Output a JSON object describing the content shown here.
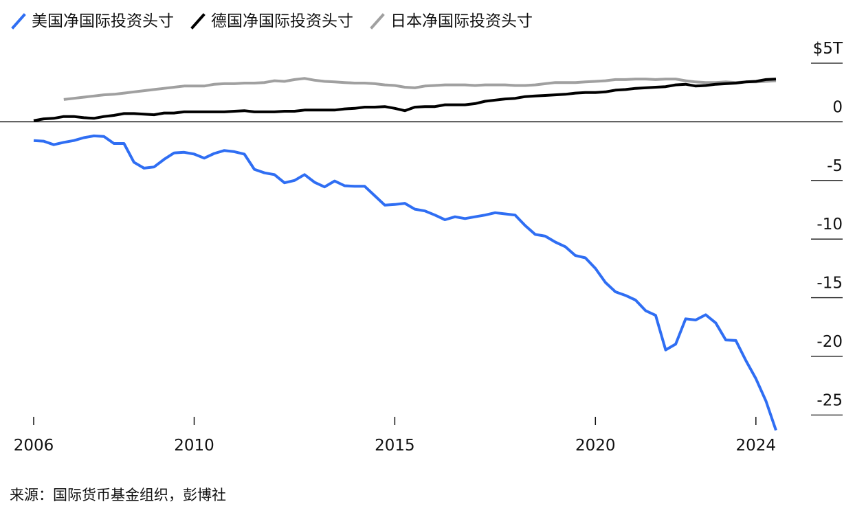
{
  "legend": [
    {
      "label": "美国净国际投资头寸",
      "color": "#2f6ef3"
    },
    {
      "label": "德国净国际投资头寸",
      "color": "#000000"
    },
    {
      "label": "日本净国际投资头寸",
      "color": "#a0a0a0"
    }
  ],
  "source": "来源：国际货币基金组织，彭博社",
  "chart_data": {
    "type": "line",
    "xlim": [
      2006,
      2024.5
    ],
    "ylim": [
      -26.5,
      5
    ],
    "x_ticks": [
      2006,
      2010,
      2015,
      2020,
      2024
    ],
    "x_tick_labels": [
      "2006",
      "2010",
      "2015",
      "2020",
      "2024"
    ],
    "y_ticks": [
      5,
      0,
      -5,
      -10,
      -15,
      -20,
      -25
    ],
    "y_tick_labels": [
      "$5T",
      "0",
      "-5",
      "-10",
      "-15",
      "-20",
      "-25"
    ],
    "series": [
      {
        "name": "美国净国际投资头寸",
        "color": "#2f6ef3",
        "points": [
          [
            2006.0,
            -1.6
          ],
          [
            2006.25,
            -1.65
          ],
          [
            2006.5,
            -1.95
          ],
          [
            2006.75,
            -1.75
          ],
          [
            2007.0,
            -1.6
          ],
          [
            2007.25,
            -1.35
          ],
          [
            2007.5,
            -1.2
          ],
          [
            2007.75,
            -1.25
          ],
          [
            2008.0,
            -1.85
          ],
          [
            2008.25,
            -1.85
          ],
          [
            2008.5,
            -3.45
          ],
          [
            2008.75,
            -3.95
          ],
          [
            2009.0,
            -3.85
          ],
          [
            2009.25,
            -3.2
          ],
          [
            2009.5,
            -2.65
          ],
          [
            2009.75,
            -2.6
          ],
          [
            2010.0,
            -2.75
          ],
          [
            2010.25,
            -3.1
          ],
          [
            2010.5,
            -2.7
          ],
          [
            2010.75,
            -2.45
          ],
          [
            2011.0,
            -2.55
          ],
          [
            2011.25,
            -2.75
          ],
          [
            2011.5,
            -4.05
          ],
          [
            2011.75,
            -4.35
          ],
          [
            2012.0,
            -4.5
          ],
          [
            2012.25,
            -5.2
          ],
          [
            2012.5,
            -5.0
          ],
          [
            2012.75,
            -4.5
          ],
          [
            2013.0,
            -5.15
          ],
          [
            2013.25,
            -5.55
          ],
          [
            2013.5,
            -5.05
          ],
          [
            2013.75,
            -5.45
          ],
          [
            2014.0,
            -5.5
          ],
          [
            2014.25,
            -5.5
          ],
          [
            2014.5,
            -6.3
          ],
          [
            2014.75,
            -7.1
          ],
          [
            2015.0,
            -7.05
          ],
          [
            2015.25,
            -6.95
          ],
          [
            2015.5,
            -7.45
          ],
          [
            2015.75,
            -7.6
          ],
          [
            2016.0,
            -7.95
          ],
          [
            2016.25,
            -8.35
          ],
          [
            2016.5,
            -8.1
          ],
          [
            2016.75,
            -8.25
          ],
          [
            2017.0,
            -8.1
          ],
          [
            2017.25,
            -7.95
          ],
          [
            2017.5,
            -7.75
          ],
          [
            2017.75,
            -7.85
          ],
          [
            2018.0,
            -7.95
          ],
          [
            2018.25,
            -8.85
          ],
          [
            2018.5,
            -9.6
          ],
          [
            2018.75,
            -9.75
          ],
          [
            2019.0,
            -10.25
          ],
          [
            2019.25,
            -10.65
          ],
          [
            2019.5,
            -11.4
          ],
          [
            2019.75,
            -11.6
          ],
          [
            2020.0,
            -12.5
          ],
          [
            2020.25,
            -13.7
          ],
          [
            2020.5,
            -14.5
          ],
          [
            2020.75,
            -14.8
          ],
          [
            2021.0,
            -15.2
          ],
          [
            2021.25,
            -16.1
          ],
          [
            2021.5,
            -16.5
          ],
          [
            2021.75,
            -19.45
          ],
          [
            2022.0,
            -18.95
          ],
          [
            2022.25,
            -16.8
          ],
          [
            2022.5,
            -16.9
          ],
          [
            2022.75,
            -16.45
          ],
          [
            2023.0,
            -17.15
          ],
          [
            2023.25,
            -18.6
          ],
          [
            2023.5,
            -18.65
          ],
          [
            2023.75,
            -20.35
          ],
          [
            2024.0,
            -21.9
          ],
          [
            2024.25,
            -23.8
          ],
          [
            2024.5,
            -26.3
          ]
        ]
      },
      {
        "name": "德国净国际投资头寸",
        "color": "#000000",
        "points": [
          [
            2006.0,
            0.1
          ],
          [
            2006.25,
            0.25
          ],
          [
            2006.5,
            0.3
          ],
          [
            2006.75,
            0.45
          ],
          [
            2007.0,
            0.45
          ],
          [
            2007.25,
            0.35
          ],
          [
            2007.5,
            0.3
          ],
          [
            2007.75,
            0.45
          ],
          [
            2008.0,
            0.55
          ],
          [
            2008.25,
            0.7
          ],
          [
            2008.5,
            0.7
          ],
          [
            2008.75,
            0.65
          ],
          [
            2009.0,
            0.6
          ],
          [
            2009.25,
            0.75
          ],
          [
            2009.5,
            0.75
          ],
          [
            2009.75,
            0.85
          ],
          [
            2010.0,
            0.85
          ],
          [
            2010.25,
            0.85
          ],
          [
            2010.5,
            0.85
          ],
          [
            2010.75,
            0.85
          ],
          [
            2011.0,
            0.9
          ],
          [
            2011.25,
            0.95
          ],
          [
            2011.5,
            0.85
          ],
          [
            2011.75,
            0.85
          ],
          [
            2012.0,
            0.85
          ],
          [
            2012.25,
            0.9
          ],
          [
            2012.5,
            0.9
          ],
          [
            2012.75,
            1.0
          ],
          [
            2013.0,
            1.0
          ],
          [
            2013.25,
            1.0
          ],
          [
            2013.5,
            1.0
          ],
          [
            2013.75,
            1.1
          ],
          [
            2014.0,
            1.15
          ],
          [
            2014.25,
            1.25
          ],
          [
            2014.5,
            1.25
          ],
          [
            2014.75,
            1.3
          ],
          [
            2015.0,
            1.15
          ],
          [
            2015.25,
            0.95
          ],
          [
            2015.5,
            1.25
          ],
          [
            2015.75,
            1.3
          ],
          [
            2016.0,
            1.3
          ],
          [
            2016.25,
            1.45
          ],
          [
            2016.5,
            1.45
          ],
          [
            2016.75,
            1.45
          ],
          [
            2017.0,
            1.55
          ],
          [
            2017.25,
            1.75
          ],
          [
            2017.5,
            1.85
          ],
          [
            2017.75,
            1.95
          ],
          [
            2018.0,
            2.0
          ],
          [
            2018.25,
            2.15
          ],
          [
            2018.5,
            2.2
          ],
          [
            2018.75,
            2.25
          ],
          [
            2019.0,
            2.3
          ],
          [
            2019.25,
            2.35
          ],
          [
            2019.5,
            2.45
          ],
          [
            2019.75,
            2.5
          ],
          [
            2020.0,
            2.5
          ],
          [
            2020.25,
            2.55
          ],
          [
            2020.5,
            2.7
          ],
          [
            2020.75,
            2.75
          ],
          [
            2021.0,
            2.85
          ],
          [
            2021.25,
            2.9
          ],
          [
            2021.5,
            2.95
          ],
          [
            2021.75,
            3.0
          ],
          [
            2022.0,
            3.15
          ],
          [
            2022.25,
            3.2
          ],
          [
            2022.5,
            3.05
          ],
          [
            2022.75,
            3.1
          ],
          [
            2023.0,
            3.2
          ],
          [
            2023.25,
            3.25
          ],
          [
            2023.5,
            3.3
          ],
          [
            2023.75,
            3.4
          ],
          [
            2024.0,
            3.45
          ],
          [
            2024.25,
            3.6
          ],
          [
            2024.5,
            3.65
          ]
        ]
      },
      {
        "name": "日本净国际投资头寸",
        "color": "#a0a0a0",
        "points": [
          [
            2006.75,
            1.9
          ],
          [
            2007.0,
            2.0
          ],
          [
            2007.25,
            2.1
          ],
          [
            2007.5,
            2.2
          ],
          [
            2007.75,
            2.3
          ],
          [
            2008.0,
            2.35
          ],
          [
            2008.25,
            2.45
          ],
          [
            2008.5,
            2.55
          ],
          [
            2008.75,
            2.65
          ],
          [
            2009.0,
            2.75
          ],
          [
            2009.25,
            2.85
          ],
          [
            2009.5,
            2.95
          ],
          [
            2009.75,
            3.05
          ],
          [
            2010.0,
            3.05
          ],
          [
            2010.25,
            3.05
          ],
          [
            2010.5,
            3.2
          ],
          [
            2010.75,
            3.25
          ],
          [
            2011.0,
            3.25
          ],
          [
            2011.25,
            3.3
          ],
          [
            2011.5,
            3.3
          ],
          [
            2011.75,
            3.35
          ],
          [
            2012.0,
            3.5
          ],
          [
            2012.25,
            3.45
          ],
          [
            2012.5,
            3.6
          ],
          [
            2012.75,
            3.7
          ],
          [
            2013.0,
            3.55
          ],
          [
            2013.25,
            3.45
          ],
          [
            2013.5,
            3.4
          ],
          [
            2013.75,
            3.35
          ],
          [
            2014.0,
            3.3
          ],
          [
            2014.25,
            3.3
          ],
          [
            2014.5,
            3.25
          ],
          [
            2014.75,
            3.15
          ],
          [
            2015.0,
            3.1
          ],
          [
            2015.25,
            2.95
          ],
          [
            2015.5,
            2.9
          ],
          [
            2015.75,
            3.05
          ],
          [
            2016.0,
            3.1
          ],
          [
            2016.25,
            3.15
          ],
          [
            2016.5,
            3.15
          ],
          [
            2016.75,
            3.15
          ],
          [
            2017.0,
            3.1
          ],
          [
            2017.25,
            3.15
          ],
          [
            2017.5,
            3.15
          ],
          [
            2017.75,
            3.15
          ],
          [
            2018.0,
            3.1
          ],
          [
            2018.25,
            3.1
          ],
          [
            2018.5,
            3.15
          ],
          [
            2018.75,
            3.25
          ],
          [
            2019.0,
            3.35
          ],
          [
            2019.25,
            3.35
          ],
          [
            2019.5,
            3.35
          ],
          [
            2019.75,
            3.4
          ],
          [
            2020.0,
            3.45
          ],
          [
            2020.25,
            3.5
          ],
          [
            2020.5,
            3.6
          ],
          [
            2020.75,
            3.6
          ],
          [
            2021.0,
            3.65
          ],
          [
            2021.25,
            3.65
          ],
          [
            2021.5,
            3.6
          ],
          [
            2021.75,
            3.65
          ],
          [
            2022.0,
            3.65
          ],
          [
            2022.25,
            3.5
          ],
          [
            2022.5,
            3.4
          ],
          [
            2022.75,
            3.35
          ],
          [
            2023.0,
            3.35
          ],
          [
            2023.25,
            3.4
          ],
          [
            2023.5,
            3.35
          ],
          [
            2023.75,
            3.4
          ],
          [
            2024.0,
            3.4
          ],
          [
            2024.25,
            3.45
          ],
          [
            2024.5,
            3.5
          ]
        ]
      }
    ]
  }
}
